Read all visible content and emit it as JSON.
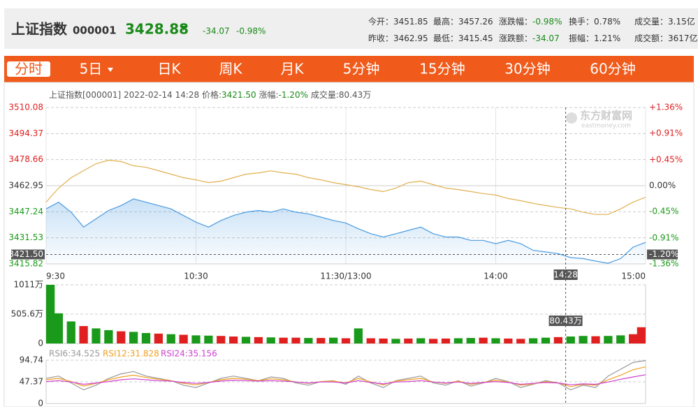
{
  "header": {
    "name": "上证指数",
    "code": "000001",
    "price": "3428.88",
    "change": "-34.07",
    "change_pct": "-0.98%",
    "stats": [
      [
        {
          "label": "今开：",
          "value": "3451.85"
        },
        {
          "label": "最高：",
          "value": "3457.26"
        },
        {
          "label": "涨跌幅：",
          "value": "-0.98%"
        },
        {
          "label": "换手：",
          "value": "0.78%"
        },
        {
          "label": "成交量：",
          "value": "3.15亿"
        }
      ],
      [
        {
          "label": "昨收：",
          "value": "3462.95"
        },
        {
          "label": "最低：",
          "value": "3415.45"
        },
        {
          "label": "涨跌额：",
          "value": "-34.07"
        },
        {
          "label": "振幅：",
          "value": "1.21%"
        },
        {
          "label": "成交额：",
          "value": "3617亿"
        }
      ]
    ]
  },
  "tabs": [
    "分时",
    "5日",
    "日K",
    "周K",
    "月K",
    "5分钟",
    "15分钟",
    "30分钟",
    "60分钟"
  ],
  "active_tab": 0,
  "info": {
    "name": "上证指数[000001]",
    "datetime": "2022-02-14 14:28",
    "price_label": "价格:",
    "change_label": "涨幅:",
    "volume_label": "成交量:"
  },
  "watermark": {
    "brand": "东方财富网",
    "site": "eastmoney.com"
  },
  "chart_data": [
    {
      "type": "line",
      "x": [
        0,
        5,
        10,
        15,
        20,
        25,
        30,
        35,
        40,
        45,
        50,
        55,
        60,
        65,
        70,
        75,
        80,
        85,
        90,
        95,
        100,
        105,
        110,
        115,
        120,
        125,
        130,
        135,
        140,
        145,
        150,
        155,
        160,
        165,
        170,
        175,
        180,
        185,
        190,
        195,
        200,
        205,
        210,
        215,
        220,
        225,
        230,
        235,
        240
      ],
      "xlim": [
        0,
        240
      ],
      "xticks": [
        {
          "value": 0,
          "label": "9:30"
        },
        {
          "value": 60,
          "label": "10:30"
        },
        {
          "value": 120,
          "label": "11:30/13:00"
        },
        {
          "value": 180,
          "label": "14:00"
        },
        {
          "value": 240,
          "label": "15:00"
        }
      ],
      "ylim": [
        3415.82,
        3510.08
      ],
      "yticks": [
        3415.82,
        3431.53,
        3447.24,
        3462.95,
        3478.66,
        3494.37,
        3510.08
      ],
      "y2lim": [
        -1.36,
        1.36
      ],
      "y2ticks": [
        {
          "value": -1.36,
          "label": "-1.36%"
        },
        {
          "value": -0.91,
          "label": "-0.91%"
        },
        {
          "value": -0.45,
          "label": "-0.45%"
        },
        {
          "value": 0,
          "label": "0.00%"
        },
        {
          "value": 0.45,
          "label": "+0.45%"
        },
        {
          "value": 0.91,
          "label": "+0.91%"
        },
        {
          "value": 1.36,
          "label": "+1.36%"
        }
      ],
      "series": [
        {
          "color": "#4a9be0",
          "area": true,
          "values": [
            3449,
            3453,
            3447,
            3438,
            3443,
            3448,
            3451,
            3455,
            3453,
            3451,
            3449,
            3445,
            3441,
            3438,
            3442,
            3445,
            3447,
            3448,
            3447,
            3449,
            3447,
            3446,
            3444,
            3442,
            3440.5,
            3437,
            3434,
            3432,
            3434,
            3436,
            3438,
            3434,
            3432,
            3432,
            3430,
            3430,
            3428,
            3430,
            3428,
            3424,
            3423,
            3422,
            3419.6,
            3419,
            3417.5,
            3416.2,
            3419,
            3425.9,
            3428.8
          ]
        },
        {
          "color": "#e0b050",
          "values": [
            3453,
            3461.5,
            3467.8,
            3472,
            3476.2,
            3478.3,
            3477.5,
            3475,
            3474,
            3472,
            3469.9,
            3467.8,
            3466.5,
            3464.8,
            3465.7,
            3467.8,
            3469.9,
            3470.7,
            3471.9,
            3470.7,
            3469.9,
            3467.8,
            3466.5,
            3464.8,
            3463.6,
            3462.3,
            3460.6,
            3459.4,
            3461.5,
            3464.8,
            3465.7,
            3463.6,
            3461.5,
            3460.6,
            3459.4,
            3458.2,
            3457.3,
            3455.2,
            3453.9,
            3452.3,
            3451,
            3449.8,
            3449,
            3446.9,
            3445.6,
            3445.6,
            3449,
            3453,
            3456
          ]
        }
      ],
      "crosshair": {
        "x": {
          "value": 208,
          "label": "14:28"
        },
        "y": {
          "value": 3421.5,
          "label": "3421.50"
        },
        "y2_label": "-1.20%"
      },
      "grid": true
    },
    {
      "type": "bar",
      "x": [
        0,
        5,
        10,
        15,
        20,
        25,
        30,
        35,
        40,
        45,
        50,
        55,
        60,
        65,
        70,
        75,
        80,
        85,
        90,
        95,
        100,
        105,
        110,
        115,
        120,
        125,
        130,
        135,
        140,
        145,
        150,
        155,
        160,
        165,
        170,
        175,
        180,
        185,
        190,
        195,
        200,
        205,
        210,
        215,
        220,
        225,
        230,
        235,
        240
      ],
      "xlim": [
        0,
        240
      ],
      "ylim": [
        0,
        1011
      ],
      "yticks": [
        0,
        {
          "value": 505.6,
          "label": "505.6万"
        },
        {
          "value": 1011,
          "label": "1011万"
        }
      ],
      "values": [
        1011,
        520,
        380,
        300,
        260,
        230,
        210,
        200,
        180,
        170,
        160,
        150,
        140,
        135,
        130,
        120,
        115,
        110,
        105,
        100,
        100,
        95,
        95,
        100,
        90,
        260,
        90,
        85,
        80,
        85,
        90,
        80,
        85,
        90,
        95,
        100,
        90,
        85,
        80,
        90,
        100,
        110,
        120,
        130,
        125,
        130,
        140,
        160,
        280
      ],
      "colors": [
        "#1a9a1a",
        "#1a9a1a",
        "#1a9a1a",
        "#e02020",
        "#1a9a1a",
        "#1a9a1a",
        "#e02020",
        "#1a9a1a",
        "#1a9a1a",
        "#e02020",
        "#1a9a1a",
        "#e02020",
        "#1a9a1a",
        "#1a9a1a",
        "#e02020",
        "#e02020",
        "#1a9a1a",
        "#e02020",
        "#1a9a1a",
        "#e02020",
        "#e02020",
        "#1a9a1a",
        "#e02020",
        "#1a9a1a",
        "#e02020",
        "#1a9a1a",
        "#e02020",
        "#e02020",
        "#1a9a1a",
        "#e02020",
        "#1a9a1a",
        "#e02020",
        "#e02020",
        "#1a9a1a",
        "#1a9a1a",
        "#e02020",
        "#1a9a1a",
        "#e02020",
        "#e02020",
        "#1a9a1a",
        "#1a9a1a",
        "#e02020",
        "#1a9a1a",
        "#1a9a1a",
        "#e02020",
        "#1a9a1a",
        "#1a9a1a",
        "#e02020",
        "#e02020"
      ],
      "crosshair": {
        "value": 80.43,
        "label": "80.43万"
      },
      "grid": true
    },
    {
      "type": "line",
      "x": [
        0,
        5,
        10,
        15,
        20,
        25,
        30,
        35,
        40,
        45,
        50,
        55,
        60,
        65,
        70,
        75,
        80,
        85,
        90,
        95,
        100,
        105,
        110,
        115,
        120,
        125,
        130,
        135,
        140,
        145,
        150,
        155,
        160,
        165,
        170,
        175,
        180,
        185,
        190,
        195,
        200,
        205,
        210,
        215,
        220,
        225,
        230,
        235,
        240
      ],
      "xlim": [
        0,
        240
      ],
      "ylim": [
        0,
        94.74
      ],
      "yticks": [
        0,
        47.37,
        94.74
      ],
      "series": [
        {
          "name": "RSI6:34.525",
          "color": "#999999",
          "values": [
            55,
            60,
            45,
            30,
            40,
            55,
            65,
            70,
            60,
            55,
            50,
            40,
            35,
            45,
            55,
            60,
            55,
            50,
            58,
            55,
            45,
            40,
            48,
            50,
            42,
            60,
            45,
            35,
            50,
            55,
            60,
            45,
            40,
            50,
            38,
            45,
            55,
            48,
            35,
            42,
            50,
            45,
            30,
            40,
            35,
            60,
            75,
            90,
            94
          ]
        },
        {
          "name": "RSI12:31.828",
          "color": "#f0a020",
          "values": [
            52,
            55,
            48,
            38,
            44,
            52,
            58,
            62,
            57,
            53,
            50,
            44,
            41,
            46,
            52,
            55,
            53,
            50,
            54,
            52,
            47,
            44,
            48,
            49,
            45,
            55,
            47,
            41,
            49,
            52,
            55,
            47,
            44,
            49,
            42,
            46,
            51,
            47,
            40,
            43,
            48,
            45,
            37,
            42,
            40,
            52,
            62,
            74,
            80
          ]
        },
        {
          "name": "RSI24:35.156",
          "color": "#d040d0",
          "values": [
            48,
            50,
            47,
            42,
            45,
            48,
            52,
            54,
            52,
            50,
            49,
            46,
            44,
            46,
            49,
            51,
            50,
            49,
            50,
            49,
            47,
            45,
            47,
            47,
            45,
            50,
            46,
            43,
            47,
            48,
            50,
            47,
            45,
            47,
            44,
            46,
            48,
            46,
            42,
            44,
            46,
            45,
            41,
            43,
            42,
            47,
            53,
            58,
            63
          ]
        }
      ],
      "grid": true
    }
  ]
}
